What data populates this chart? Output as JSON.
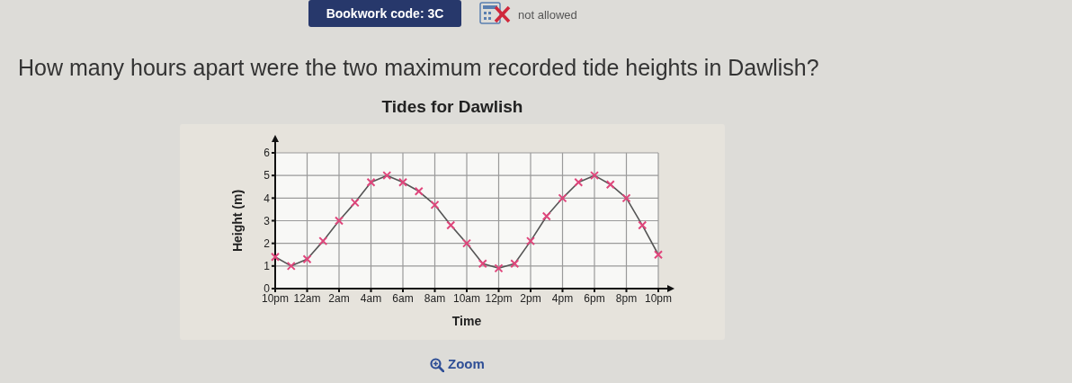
{
  "chart_data": {
    "type": "line",
    "title": "Tides for Dawlish",
    "xlabel": "Time",
    "ylabel": "Height (m)",
    "annotations": [
      "Bookwork code: 3C",
      "not allowed",
      "How many hours apart were the two maximum recorded tide heights in Dawlish?",
      "Zoom"
    ],
    "categories": [
      "10pm",
      null,
      "12am",
      null,
      "2am",
      null,
      "4am",
      null,
      "6am",
      null,
      "8am",
      null,
      "10am",
      null,
      "12pm",
      null,
      "2pm",
      null,
      "4pm",
      null,
      "6pm",
      null,
      "8pm",
      null,
      "10pm"
    ],
    "values": [
      1.4,
      1.0,
      1.3,
      2.1,
      3.0,
      3.8,
      4.7,
      5.0,
      4.7,
      4.3,
      3.7,
      2.8,
      2.0,
      1.1,
      0.9,
      1.1,
      2.1,
      3.2,
      4.0,
      4.7,
      5.0,
      4.6,
      4.0,
      2.8,
      1.5
    ],
    "color": "#555555",
    "ylim": [
      0,
      6
    ],
    "yticks": [
      0,
      1,
      2,
      3,
      4,
      5,
      6
    ],
    "grid": true,
    "marker": "cross",
    "line_style": "solid"
  }
}
